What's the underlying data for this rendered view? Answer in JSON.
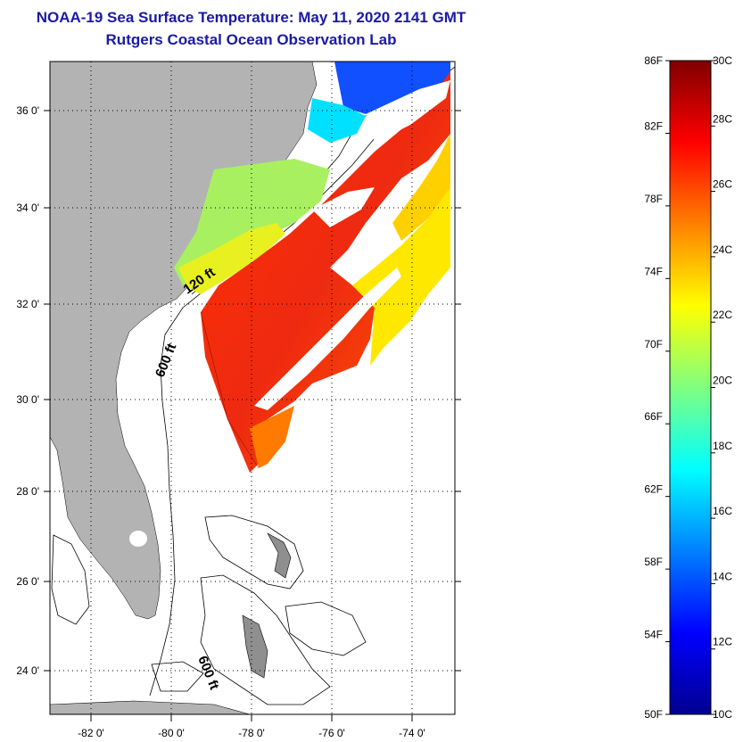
{
  "title": {
    "line1": "NOAA-19 Sea Surface Temperature:  May 11, 2020 2141 GMT",
    "line2": "Rutgers Coastal Ocean Observation Lab"
  },
  "map": {
    "lon_ticks": [
      "-82 0'",
      "-80 0'",
      "-78 0'",
      "-76 0'",
      "-74 0'"
    ],
    "lat_ticks": [
      "36 0'",
      "34 0'",
      "32 0'",
      "30 0'",
      "28 0'",
      "26 0'",
      "24 0'"
    ],
    "contour_labels": [
      "120 ft",
      "600 ft",
      "600 ft"
    ],
    "colors": {
      "land": "#b3b3b3",
      "cloud": "#ffffff"
    }
  },
  "colorbar": {
    "fahrenheit_labels": [
      "86F",
      "82F",
      "78F",
      "74F",
      "70F",
      "66F",
      "62F",
      "58F",
      "54F",
      "50F"
    ],
    "celsius_labels": [
      "30C",
      "28C",
      "26C",
      "24C",
      "22C",
      "20C",
      "18C",
      "16C",
      "14C",
      "12C",
      "10C"
    ],
    "colors": [
      "#00008f",
      "#0000ff",
      "#0080ff",
      "#00ffff",
      "#80ff80",
      "#ffff00",
      "#ff8000",
      "#ff0000",
      "#800000"
    ]
  }
}
